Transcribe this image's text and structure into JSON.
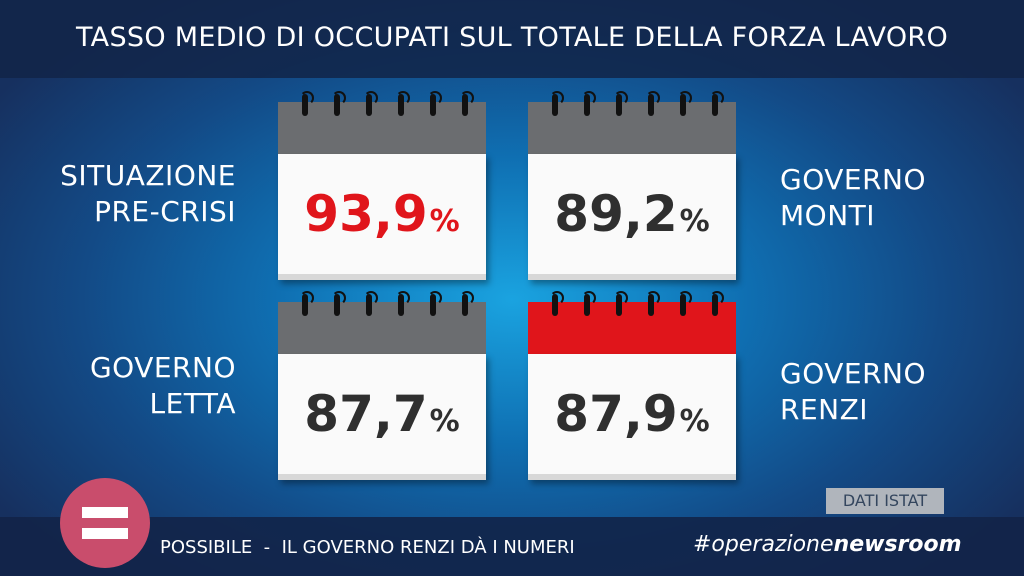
{
  "title": "TASSO MEDIO DI OCCUPATI SUL TOTALE DELLA FORZA LAVORO",
  "calendars": [
    {
      "label_line1": "SITUAZIONE",
      "label_line2": "PRE-CRISI",
      "value": "93,9",
      "unit": "%",
      "value_color": "#e0151b",
      "header_color": "#6b6d70"
    },
    {
      "label_line1": "GOVERNO",
      "label_line2": "MONTI",
      "value": "89,2",
      "unit": "%",
      "value_color": "#2f2f2f",
      "header_color": "#6b6d70"
    },
    {
      "label_line1": "GOVERNO",
      "label_line2": "LETTA",
      "value": "87,7",
      "unit": "%",
      "value_color": "#2f2f2f",
      "header_color": "#6b6d70"
    },
    {
      "label_line1": "GOVERNO",
      "label_line2": "RENZI",
      "value": "87,9",
      "unit": "%",
      "value_color": "#2f2f2f",
      "header_color": "#e0151b"
    }
  ],
  "source": "DATI ISTAT",
  "footer": {
    "text": "POSSIBILE  -  IL GOVERNO RENZI DÀ I NUMERI",
    "hashtag_prefix": "#operazione",
    "hashtag_bold": "newsroom"
  },
  "colors": {
    "accent_red": "#e0151b",
    "logo": "#c94d6c"
  }
}
